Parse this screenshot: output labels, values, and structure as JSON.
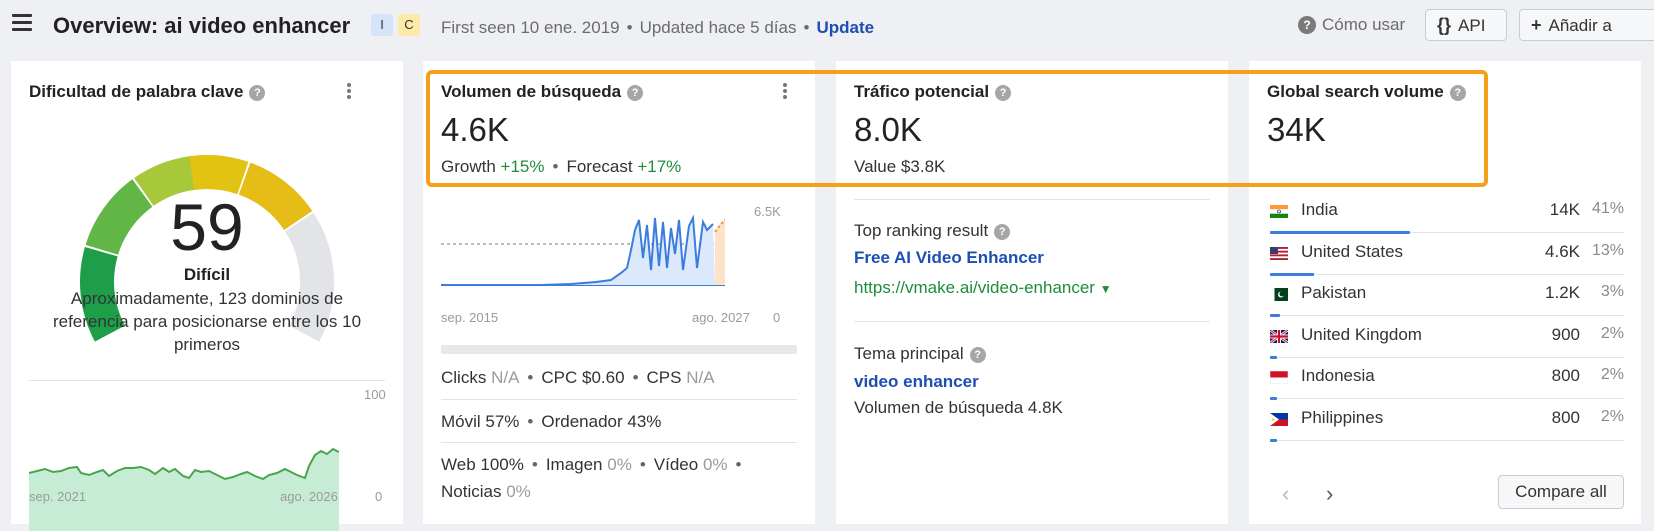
{
  "header": {
    "title": "Overview: ai video enhancer",
    "badge_i": "I",
    "badge_c": "C",
    "first_seen": "First seen 10 ene. 2019",
    "updated": "Updated hace 5 días",
    "update_link": "Update",
    "how_to": "Cómo usar",
    "api_button": "API",
    "add_button": "Añadir a",
    "dot": "•"
  },
  "kd_card": {
    "title": "Dificultad de palabra clave",
    "score": "59",
    "score_value": 59,
    "score_max": 100,
    "label": "Difícil",
    "description": "Aproximadamente, 123 dominios de referencia para posicionarse entre los 10 primeros",
    "chart_start": "sep. 2021",
    "chart_end": "ago. 2026",
    "chart_max": "100",
    "chart_min": "0"
  },
  "volume_card": {
    "title": "Volumen de búsqueda",
    "value": "4.6K",
    "growth_label": "Growth",
    "growth_value": "+15%",
    "forecast_label": "Forecast",
    "forecast_value": "+17%",
    "chart_start": "sep. 2015",
    "chart_end": "ago. 2027",
    "chart_max": "6.5K",
    "chart_min": "0",
    "clicks_label": "Clicks",
    "clicks_value": "N/A",
    "cpc_label": "CPC",
    "cpc_value": "$0.60",
    "cps_label": "CPS",
    "cps_value": "N/A",
    "mobile": "Móvil 57%",
    "desktop": "Ordenador 43%",
    "web_label": "Web 100%",
    "image_label": "Imagen",
    "image_value": "0%",
    "video_label": "Vídeo",
    "video_value": "0%",
    "news_label": "Noticias",
    "news_value": "0%"
  },
  "traffic_card": {
    "title": "Tráfico potencial",
    "value": "8.0K",
    "value_line": "Value $3.8K",
    "top_result_label": "Top ranking result",
    "top_result_title": "Free AI Video Enhancer",
    "top_result_url": "https://vmake.ai/video-enhancer",
    "topic_label": "Tema principal",
    "topic_link": "video enhancer",
    "topic_volume": "Volumen de búsqueda 4.8K"
  },
  "global_card": {
    "title": "Global search volume",
    "value": "34K",
    "countries": [
      {
        "name": "India",
        "volume": "14K",
        "pct": "41%",
        "share": 0.41,
        "flag": "india-flag-icon"
      },
      {
        "name": "United States",
        "volume": "4.6K",
        "pct": "13%",
        "share": 0.13,
        "flag": "us-flag-icon"
      },
      {
        "name": "Pakistan",
        "volume": "1.2K",
        "pct": "3%",
        "share": 0.03,
        "flag": "pakistan-flag-icon"
      },
      {
        "name": "United Kingdom",
        "volume": "900",
        "pct": "2%",
        "share": 0.02,
        "flag": "uk-flag-icon"
      },
      {
        "name": "Indonesia",
        "volume": "800",
        "pct": "2%",
        "share": 0.02,
        "flag": "indonesia-flag-icon"
      },
      {
        "name": "Philippines",
        "volume": "800",
        "pct": "2%",
        "share": 0.02,
        "flag": "philippines-flag-icon"
      }
    ],
    "compare_button": "Compare all"
  },
  "colors": {
    "accent_highlight": "#f5a01a",
    "link_blue": "#1d4eb3",
    "positive_green": "#1e8c3a",
    "bar_blue": "#3b7ddd"
  }
}
